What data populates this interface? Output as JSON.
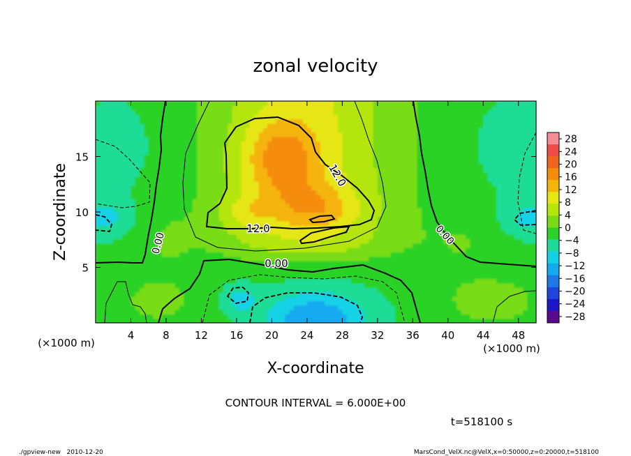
{
  "chart_data": {
    "type": "heatmap",
    "title": "zonal velocity",
    "xlabel": "X-coordinate",
    "ylabel": "Z-coordinate",
    "x_unit_label": "(×1000 m)",
    "y_unit_label": "(×1000 m)",
    "xlim": [
      0,
      50
    ],
    "ylim": [
      0,
      20
    ],
    "x_ticks": [
      4,
      8,
      12,
      16,
      20,
      24,
      28,
      32,
      36,
      40,
      44,
      48
    ],
    "y_ticks": [
      5,
      10,
      15
    ],
    "colorbar": {
      "ticks": [
        28,
        24,
        20,
        16,
        12,
        8,
        4,
        0,
        -4,
        -8,
        -12,
        -16,
        -20,
        -24,
        -28
      ],
      "range": [
        -30,
        30
      ],
      "colors": [
        "#5a0a8c",
        "#1e14c8",
        "#1e46dc",
        "#1e78e6",
        "#14aaf0",
        "#14d2e6",
        "#1edc96",
        "#2cd228",
        "#78dc14",
        "#b4e60a",
        "#e6e614",
        "#f5b40a",
        "#f58c0a",
        "#f0641e",
        "#f04b46",
        "#f58c96"
      ]
    },
    "contour_interval_text": "CONTOUR INTERVAL = 6.000E+00",
    "contour_labels": [
      "12.0",
      "12.0",
      "0.00",
      "0.00",
      "0.00"
    ],
    "time_label": "t=518100 s",
    "footer_left": "./gpview-new   2010-12-20",
    "footer_right": "MarsCond_VelX.nc@VelX,x=0:50000,z=0:20000,t=518100",
    "features": [
      {
        "kind": "max",
        "x": 21,
        "z": 14.5,
        "value": 20
      },
      {
        "kind": "max",
        "x": 25,
        "z": 10,
        "value": 17
      },
      {
        "kind": "min",
        "x": 25,
        "z": 0.6,
        "value": -14
      },
      {
        "kind": "min",
        "x": 16,
        "z": 2.3,
        "value": -9
      },
      {
        "kind": "min",
        "x": 1,
        "z": 9.5,
        "value": -8
      },
      {
        "kind": "min",
        "x": 49.5,
        "z": 9.5,
        "value": -8
      },
      {
        "kind": "max",
        "x": 45,
        "z": 2,
        "value": 5
      },
      {
        "kind": "max",
        "x": 7,
        "z": 2,
        "value": 4
      }
    ]
  }
}
